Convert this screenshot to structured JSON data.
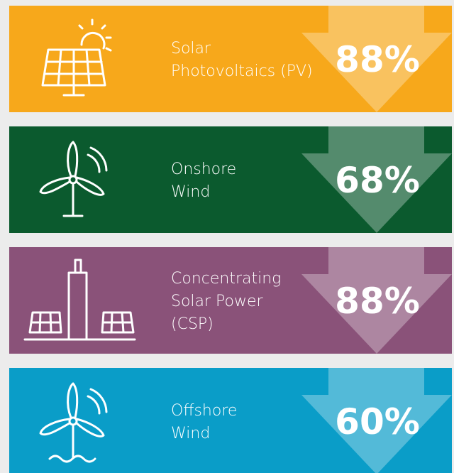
{
  "panels": [
    {
      "label": [
        "Solar",
        "Photovoltaics (PV)"
      ],
      "value": "88%",
      "color": "#f7a81b"
    },
    {
      "label": [
        "Onshore",
        "Wind"
      ],
      "value": "68%",
      "color": "#0b5a2e"
    },
    {
      "label": [
        "Concentrating",
        "Solar Power",
        "(CSP)"
      ],
      "value": "88%",
      "color": "#8a5279"
    },
    {
      "label": [
        "Offshore",
        "Wind"
      ],
      "value": "60%",
      "color": "#0a9dc8"
    }
  ]
}
